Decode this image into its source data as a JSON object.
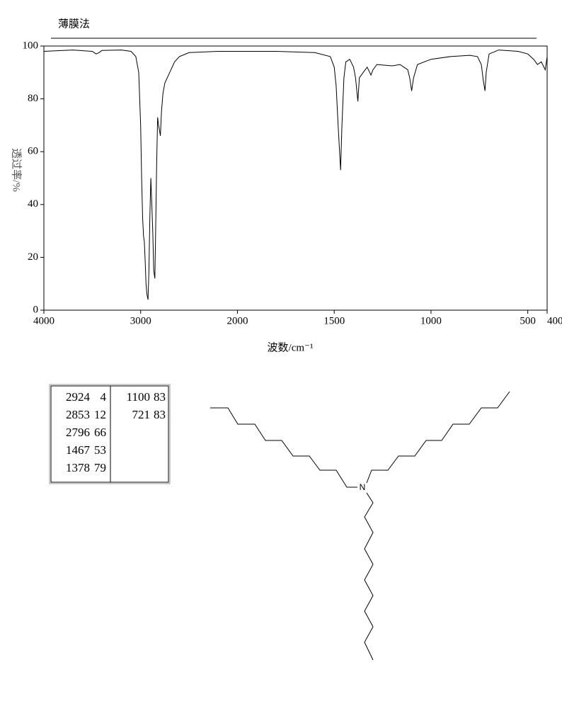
{
  "chart_data": {
    "type": "line",
    "title": "薄膜法",
    "xlabel": "波数/cm⁻¹",
    "ylabel": "透过率/%",
    "x": [
      4000,
      3700,
      3500,
      3460,
      3430,
      3400,
      3200,
      3100,
      3050,
      3020,
      3000,
      2990,
      2980,
      2970,
      2962,
      2955,
      2945,
      2935,
      2924,
      2915,
      2905,
      2895,
      2885,
      2875,
      2865,
      2853,
      2845,
      2835,
      2825,
      2815,
      2805,
      2796,
      2785,
      2770,
      2750,
      2700,
      2650,
      2600,
      2500,
      2200,
      2000,
      1800,
      1600,
      1520,
      1500,
      1490,
      1480,
      1467,
      1460,
      1450,
      1440,
      1420,
      1400,
      1390,
      1378,
      1370,
      1350,
      1330,
      1310,
      1300,
      1280,
      1200,
      1160,
      1140,
      1120,
      1110,
      1100,
      1090,
      1070,
      1000,
      900,
      800,
      760,
      740,
      730,
      721,
      715,
      700,
      650,
      550,
      500,
      470,
      450,
      430,
      410,
      400
    ],
    "values": [
      98,
      98.5,
      98,
      97,
      97.5,
      98.3,
      98.5,
      98,
      96,
      90,
      70,
      50,
      35,
      28,
      26,
      20,
      10,
      6,
      4,
      15,
      35,
      50,
      40,
      30,
      15,
      12,
      30,
      55,
      73,
      70,
      68,
      66,
      75,
      82,
      86,
      90,
      94,
      96,
      97.5,
      98,
      98,
      98,
      97.5,
      96,
      92,
      85,
      70,
      53,
      70,
      88,
      94,
      95,
      92,
      88,
      79,
      88,
      90,
      92,
      89,
      91,
      93,
      92.5,
      93,
      92,
      91,
      88,
      83,
      88,
      93,
      95,
      96,
      96.5,
      96,
      93,
      87,
      83,
      90,
      97,
      98.5,
      98,
      97,
      95,
      93,
      94,
      91,
      96
    ],
    "color": "#000000",
    "xlim": [
      4000,
      400
    ],
    "xticks": [
      4000,
      3000,
      2000,
      1500,
      1000,
      500,
      400
    ],
    "x_break": 2000,
    "ylim": [
      0,
      100
    ],
    "yticks": [
      0,
      20,
      40,
      60,
      80,
      100
    ]
  },
  "peak_table": {
    "columns": [
      [
        [
          2924,
          4
        ],
        [
          2853,
          12
        ],
        [
          2796,
          66
        ],
        [
          1467,
          53
        ],
        [
          1378,
          79
        ]
      ],
      [
        [
          1100,
          83
        ],
        [
          721,
          83
        ]
      ]
    ]
  },
  "molecule": {
    "atom_label": "N"
  }
}
